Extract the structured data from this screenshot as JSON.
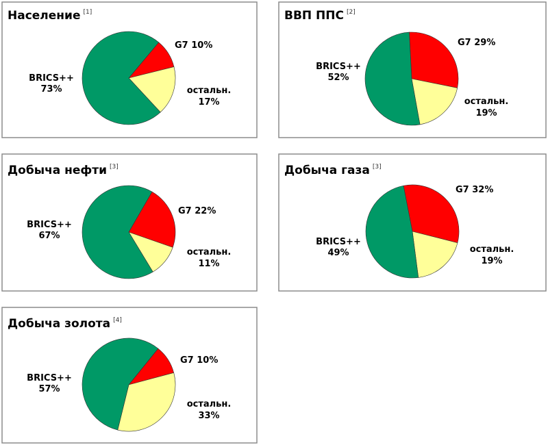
{
  "colors": {
    "BRICS++": "#009966",
    "G7": "#ff0000",
    "остальн.": "#ffff99"
  },
  "chart_data": [
    {
      "type": "pie",
      "title": "Население",
      "ref": "[1]",
      "slices": [
        {
          "label": "G7",
          "value": 10,
          "text": "G7 10%"
        },
        {
          "label": "остальн.",
          "value": 17,
          "text": "17%"
        },
        {
          "label": "BRICS++",
          "value": 73,
          "text": "73%"
        }
      ]
    },
    {
      "type": "pie",
      "title": "ВВП ППС",
      "ref": "[2]",
      "slices": [
        {
          "label": "G7",
          "value": 29,
          "text": "G7 29%"
        },
        {
          "label": "остальн.",
          "value": 19,
          "text": "19%"
        },
        {
          "label": "BRICS++",
          "value": 52,
          "text": "52%"
        }
      ]
    },
    {
      "type": "pie",
      "title": "Добыча нефти",
      "ref": "[3]",
      "slices": [
        {
          "label": "G7",
          "value": 22,
          "text": "G7 22%"
        },
        {
          "label": "остальн.",
          "value": 11,
          "text": "11%"
        },
        {
          "label": "BRICS++",
          "value": 67,
          "text": "67%"
        }
      ]
    },
    {
      "type": "pie",
      "title": "Добыча газа",
      "ref": "[3]",
      "slices": [
        {
          "label": "G7",
          "value": 32,
          "text": "G7 32%"
        },
        {
          "label": "остальн.",
          "value": 19,
          "text": "19%"
        },
        {
          "label": "BRICS++",
          "value": 49,
          "text": "49%"
        }
      ]
    },
    {
      "type": "pie",
      "title": "Добыча золота",
      "ref": "[4]",
      "slices": [
        {
          "label": "G7",
          "value": 10,
          "text": "G7 10%"
        },
        {
          "label": "остальн.",
          "value": 33,
          "text": "33%"
        },
        {
          "label": "BRICS++",
          "value": 57,
          "text": "57%"
        }
      ]
    }
  ]
}
